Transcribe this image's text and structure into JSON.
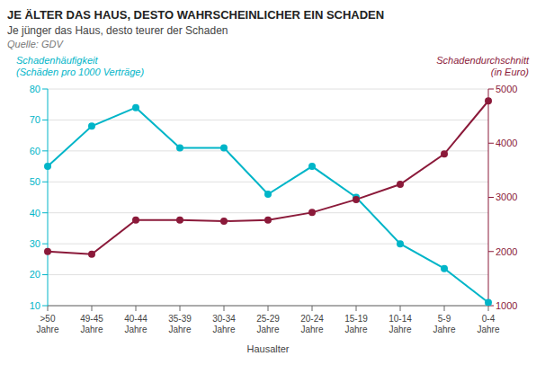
{
  "chart_data": {
    "type": "line",
    "title": "JE ÄLTER DAS HAUS, DESTO WAHRSCHEINLICHER EIN SCHADEN",
    "subtitle": "Je jünger das Haus, desto teurer der Schaden",
    "source": "Quelle: GDV",
    "x_label": "Hausalter",
    "categories": [
      ">50\nJahre",
      "49-45\nJahre",
      "40-44\nJahre",
      "35-39\nJahre",
      "30-34\nJahre",
      "25-29\nJahre",
      "20-24\nJahre",
      "15-19\nJahre",
      "10-14\nJahre",
      "5-9\nJahre",
      "0-4\nJahre"
    ],
    "series": [
      {
        "name": "Schadenhäufigkeit\n(Schäden pro 1000 Verträge)",
        "color": "#00b5c8",
        "marker": "o",
        "axis": "y",
        "values": [
          55,
          68,
          74,
          61,
          61,
          46,
          55,
          45,
          30,
          22,
          11
        ]
      },
      {
        "name": "Schadendurchschnitt\n(in Euro)",
        "color": "#8b1a3a",
        "marker": "o",
        "axis": "y2",
        "values": [
          2000,
          1950,
          2580,
          2580,
          2560,
          2580,
          2720,
          2960,
          3240,
          3800,
          4780
        ]
      }
    ],
    "ylim": [
      10,
      80
    ],
    "yticks": [
      10,
      20,
      30,
      40,
      50,
      60,
      70,
      80
    ],
    "y2lim": [
      1000,
      5000
    ],
    "y2ticks": [
      1000,
      2000,
      3000,
      4000,
      5000
    ],
    "grid": true
  }
}
